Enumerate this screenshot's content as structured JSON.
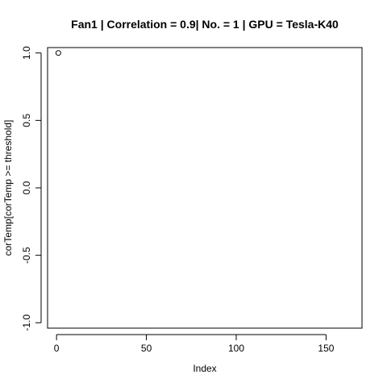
{
  "chart_data": {
    "type": "scatter",
    "title": "Fan1 | Correlation = 0.9| No. = 1 | GPU = Tesla-K40",
    "xlabel": "Index",
    "ylabel": "corTemp[corTemp >= threshold]",
    "xlim": [
      -5,
      170
    ],
    "ylim": [
      -1.04,
      1.04
    ],
    "x_ticks": [
      0,
      50,
      100,
      150
    ],
    "x_tick_labels": [
      "0",
      "50",
      "100",
      "150"
    ],
    "y_ticks": [
      -1.0,
      -0.5,
      0.0,
      0.5,
      1.0
    ],
    "y_tick_labels": [
      "-1.0",
      "-0.5",
      "0.0",
      "0.5",
      "1.0"
    ],
    "grid": false,
    "legend": "none",
    "marker": "open-circle",
    "colors": {
      "points": "#000000",
      "axes": "#000000",
      "background": "#ffffff"
    },
    "points": [
      {
        "x": 1,
        "y": 1.0
      }
    ]
  }
}
